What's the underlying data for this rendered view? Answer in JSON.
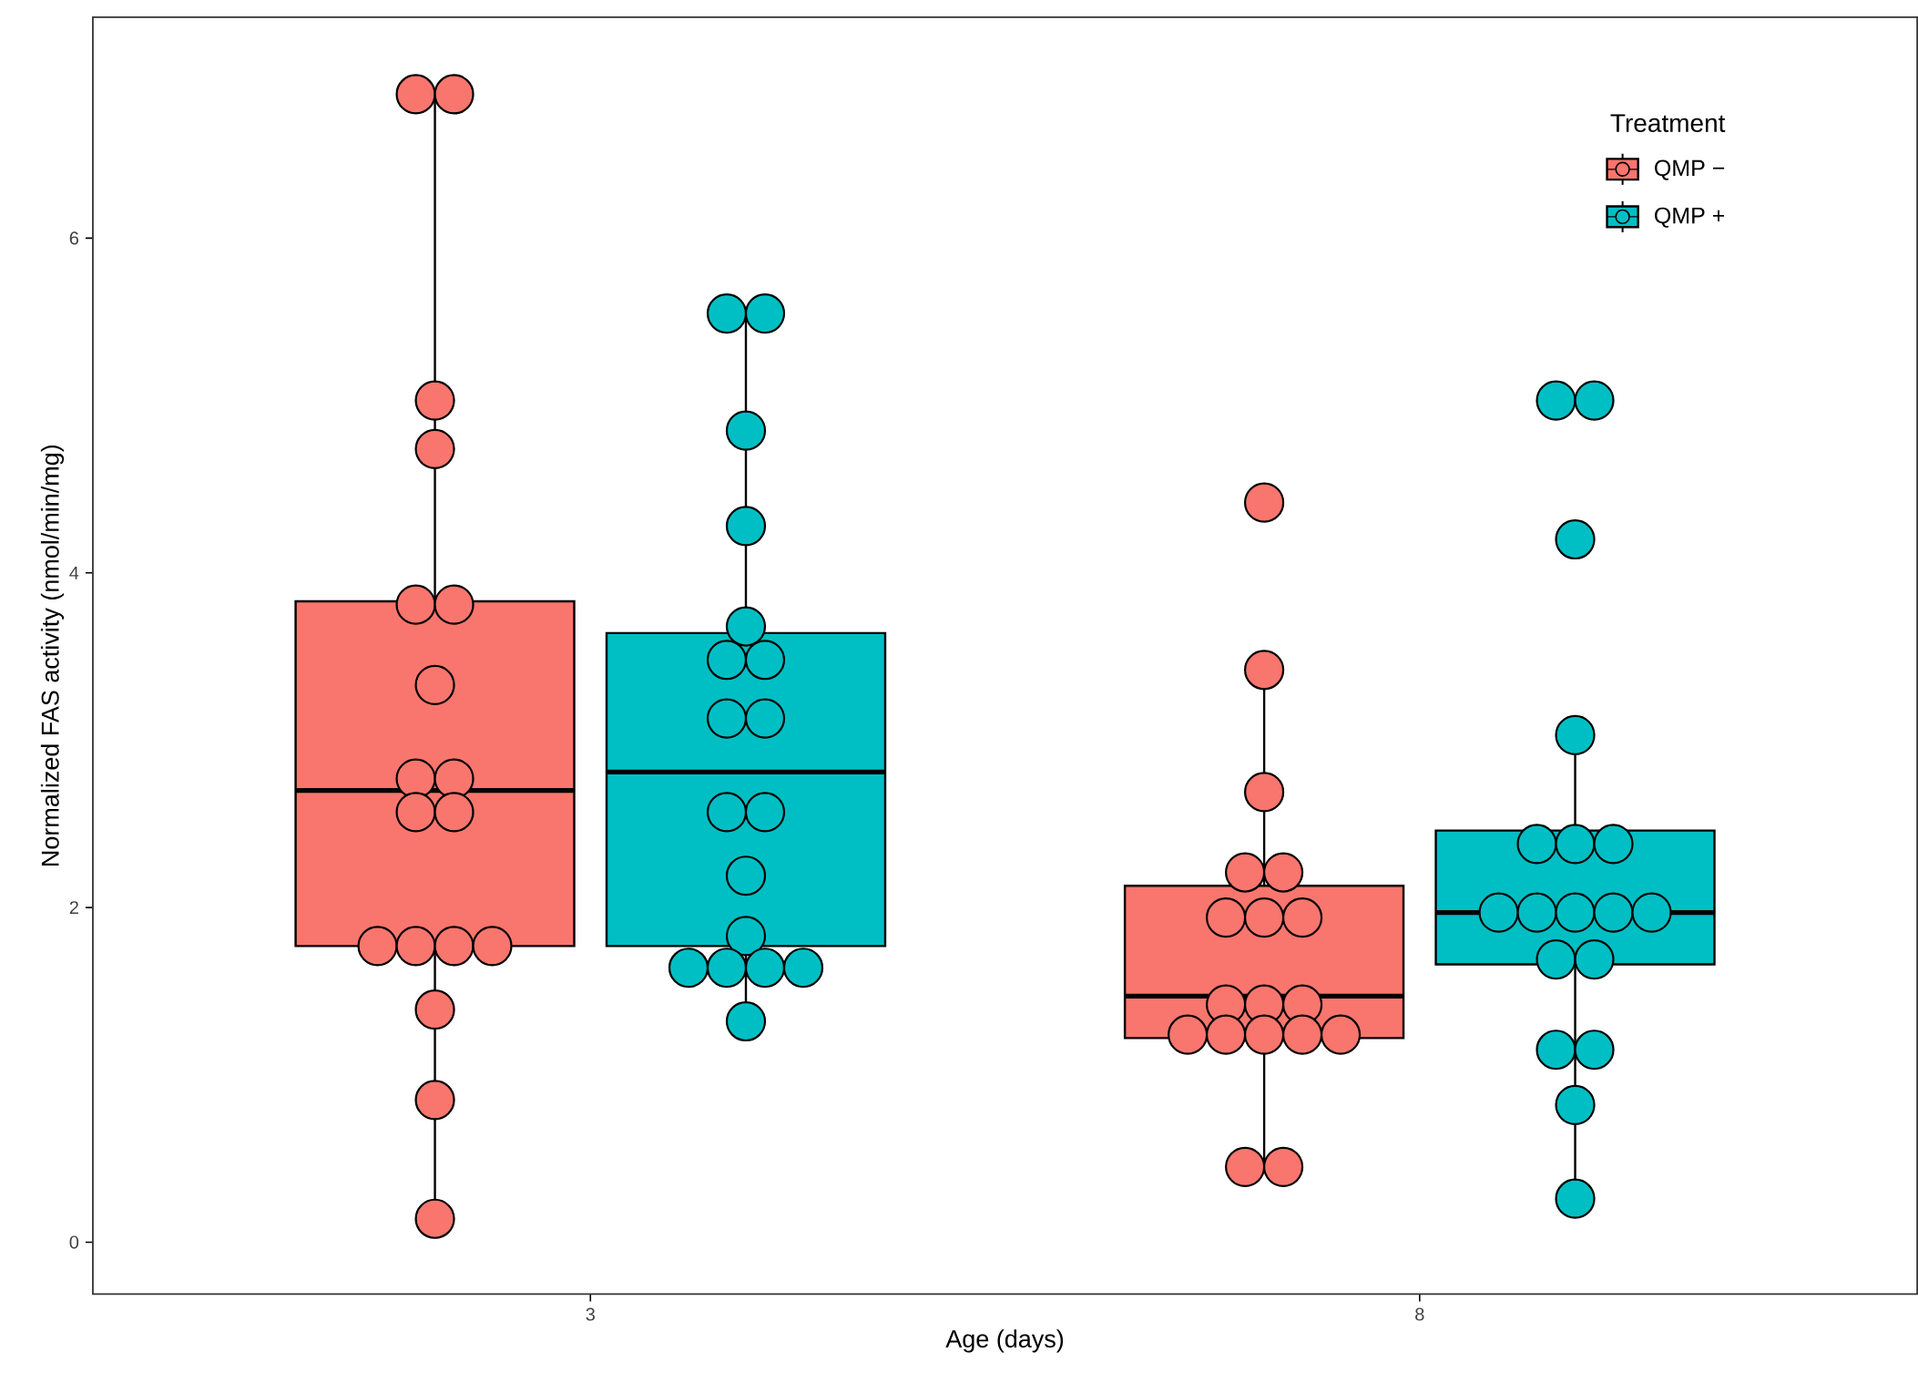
{
  "chart_data": {
    "type": "box",
    "xlabel": "Age (days)",
    "ylabel": "Normalized FAS activity (nmol/min/mg)",
    "legend_title": "Treatment",
    "legend": "top right",
    "categories": [
      "3",
      "8"
    ],
    "ylim": [
      -0.31,
      7.32
    ],
    "yticks": [
      0,
      2,
      4,
      6
    ],
    "series": [
      {
        "name": "QMP −",
        "color": "#f8766d",
        "boxes": [
          {
            "low": 0.14,
            "q1": 1.77,
            "median": 2.7,
            "q3": 3.83,
            "high": 6.86
          },
          {
            "low": 0.45,
            "q1": 1.22,
            "median": 1.47,
            "q3": 2.13,
            "high": 3.42
          }
        ]
      },
      {
        "name": "QMP +",
        "color": "#00bfc4",
        "boxes": [
          {
            "low": 1.32,
            "q1": 1.77,
            "median": 2.81,
            "q3": 3.64,
            "high": 5.55
          },
          {
            "low": 0.26,
            "q1": 1.66,
            "median": 1.97,
            "q3": 2.46,
            "high": 3.03
          }
        ]
      },
      {
        "type": "scatter",
        "color": "#f8766d",
        "x": [
          "3",
          "3",
          "3",
          "3",
          "3",
          "3",
          "3",
          "3",
          "3",
          "3",
          "3",
          "3",
          "3",
          "3",
          "3",
          "3",
          "3",
          "3",
          "8",
          "8",
          "8",
          "8",
          "8",
          "8",
          "8",
          "8",
          "8",
          "8",
          "8",
          "8",
          "8",
          "8",
          "8",
          "8",
          "8",
          "8"
        ],
        "values": [
          6.86,
          6.86,
          5.03,
          4.74,
          3.81,
          3.81,
          3.33,
          2.77,
          2.77,
          2.57,
          2.57,
          1.77,
          1.77,
          1.77,
          1.77,
          1.39,
          0.85,
          0.14,
          4.42,
          3.42,
          2.69,
          2.21,
          2.21,
          1.94,
          1.94,
          1.94,
          1.42,
          1.42,
          1.42,
          1.24,
          1.24,
          1.24,
          1.24,
          1.24,
          0.45,
          0.45
        ]
      },
      {
        "type": "scatter",
        "color": "#00bfc4",
        "x": [
          "3",
          "3",
          "3",
          "3",
          "3",
          "3",
          "3",
          "3",
          "3",
          "3",
          "3",
          "3",
          "3",
          "3",
          "3",
          "3",
          "3",
          "3",
          "8",
          "8",
          "8",
          "8",
          "8",
          "8",
          "8",
          "8",
          "8",
          "8",
          "8",
          "8",
          "8",
          "8",
          "8",
          "8",
          "8",
          "8"
        ],
        "values": [
          5.55,
          5.55,
          4.85,
          4.28,
          3.68,
          3.48,
          3.48,
          3.13,
          3.13,
          2.57,
          2.57,
          2.19,
          1.83,
          1.64,
          1.64,
          1.64,
          1.64,
          1.32,
          5.03,
          5.03,
          4.2,
          3.03,
          2.38,
          2.38,
          2.38,
          1.97,
          1.97,
          1.97,
          1.97,
          1.97,
          1.69,
          1.69,
          1.15,
          1.15,
          0.82,
          0.26
        ]
      }
    ]
  }
}
